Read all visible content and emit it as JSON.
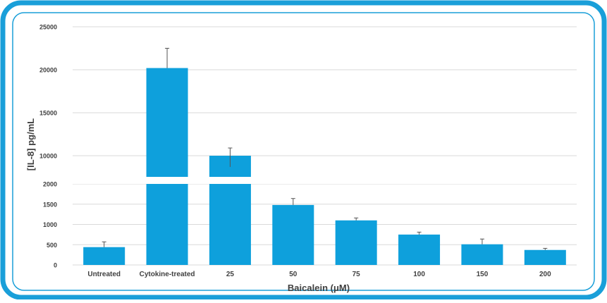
{
  "colors": {
    "frame": "#1a9fd9",
    "bar": "#0ea0dc",
    "grid": "#d9d9d9",
    "text": "#404040"
  },
  "chart_data": {
    "type": "bar",
    "title": "",
    "xlabel": "Baicalein (μM)",
    "ylabel": "[IL-8] pg/mL",
    "broken_axis": true,
    "ylim_lower": [
      0,
      2000
    ],
    "ylim_upper": [
      10000,
      25000
    ],
    "y_ticks_lower": [
      "0",
      "500",
      "1000",
      "1500",
      "2000"
    ],
    "y_ticks_upper": [
      "10000",
      "15000",
      "20000",
      "25000"
    ],
    "categories": [
      "Untreated",
      "Cytokine-treated",
      "25",
      "50",
      "75",
      "100",
      "150",
      "200"
    ],
    "values": [
      440,
      20200,
      8700,
      1480,
      1100,
      750,
      510,
      370
    ],
    "error": [
      130,
      2300,
      2200,
      160,
      60,
      60,
      130,
      40
    ],
    "legend": "none",
    "grid": true
  }
}
